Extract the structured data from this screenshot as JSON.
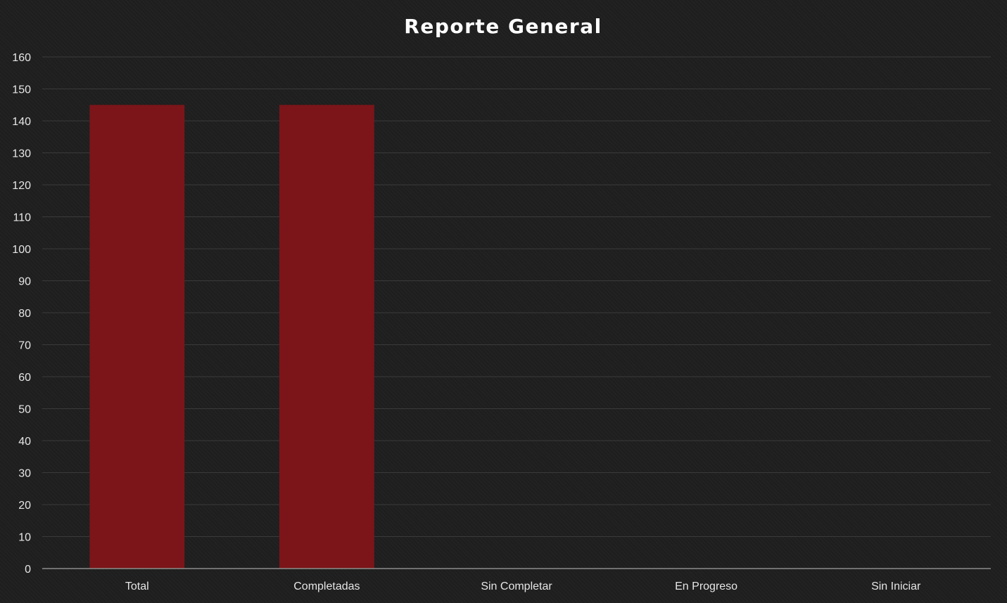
{
  "chart_data": {
    "type": "bar",
    "title": "Reporte General",
    "xlabel": "",
    "ylabel": "",
    "categories": [
      "Total",
      "Completadas",
      "Sin Completar",
      "En Progreso",
      "Sin Iniciar"
    ],
    "values": [
      145,
      145,
      0,
      0,
      0
    ],
    "ylim": [
      0,
      160
    ],
    "yticks": [
      0,
      10,
      20,
      30,
      40,
      50,
      60,
      70,
      80,
      90,
      100,
      110,
      120,
      130,
      140,
      150,
      160
    ],
    "grid": true,
    "legend": "none",
    "bar_color": "#7b1519",
    "background_color": "#1f1f1f"
  }
}
